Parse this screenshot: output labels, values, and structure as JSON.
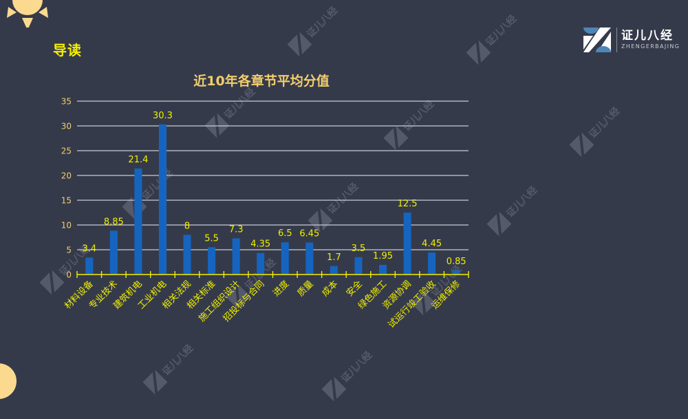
{
  "page": {
    "section_title": "导读",
    "logo": {
      "name": "证儿八经",
      "sub": "ZHENGERBAJING"
    },
    "watermark_text": "证儿八经",
    "colors": {
      "background": "#353a4b",
      "bar": "#1565c0",
      "data_label": "#f0f000",
      "axis": "#f0f000",
      "gridline": "#c9ccd4",
      "title": "#f2ce6b",
      "sun": "#fbd98f"
    }
  },
  "chart_data": {
    "type": "bar",
    "title": "近10年各章节平均分值",
    "xlabel": "",
    "ylabel": "",
    "ylim": [
      0,
      35
    ],
    "yticks": [
      0,
      5,
      10,
      15,
      20,
      25,
      30,
      35
    ],
    "grid": true,
    "legend": "none",
    "categories": [
      "材料设备",
      "专业技术",
      "建筑机电",
      "工业机电",
      "相关法规",
      "相关标准",
      "施工组织设计",
      "招投标与合同",
      "进度",
      "质量",
      "成本",
      "安全",
      "绿色施工",
      "资源协调",
      "试运行竣工验收",
      "运维保修"
    ],
    "values": [
      3.4,
      8.85,
      21.4,
      30.3,
      8,
      5.5,
      7.3,
      4.35,
      6.5,
      6.45,
      1.7,
      3.5,
      1.95,
      12.5,
      4.45,
      0.85
    ],
    "labels": [
      "3.4",
      "8.85",
      "21.4",
      "30.3",
      "8",
      "5.5",
      "7.3",
      "4.35",
      "6.5",
      "6.45",
      "1.7",
      "3.5",
      "1.95",
      "12.5",
      "4.45",
      "0.85"
    ]
  }
}
